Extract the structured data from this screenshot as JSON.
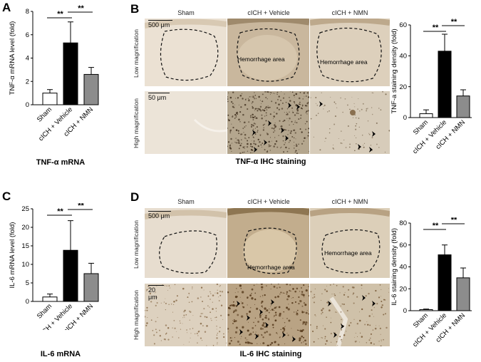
{
  "panels": {
    "a": "A",
    "b": "B",
    "c": "C",
    "d": "D"
  },
  "captions": {
    "tnf_mrna": "TNF-α mRNA",
    "tnf_ihc": "TNF-α IHC staining",
    "il6_mrna": "IL-6 mRNA",
    "il6_ihc": "IL-6 IHC staining"
  },
  "columns": [
    "Sham",
    "cICH + Vehicle",
    "cICH + NMN"
  ],
  "rows": {
    "low": "Low magnification",
    "high": "High magnification"
  },
  "micrographs": {
    "hemorrhage_label": "Hemorrhage area",
    "scale_low": "500 μm",
    "scale_high_b": "50 μm",
    "scale_high_d": "20 μm"
  },
  "significance": "**",
  "colors": {
    "sham": "#ffffff",
    "vehicle": "#000000",
    "nmn": "#8c8c8c",
    "tissue_light": "#ece2d6",
    "tissue_dark": "#b9a48a"
  },
  "chart_data": [
    {
      "id": "A",
      "type": "bar",
      "categories": [
        "Sham",
        "cICH + Vehicle",
        "cICH + NMN"
      ],
      "values": [
        1.0,
        5.3,
        2.6
      ],
      "errors": [
        0.3,
        1.8,
        0.6
      ],
      "ylabel": "TNF-α mRNA level (fold)",
      "ylim": [
        0,
        8
      ],
      "yticks": [
        0,
        2,
        4,
        6,
        8
      ],
      "significance": [
        {
          "from": 0,
          "to": 1,
          "label": "**"
        },
        {
          "from": 1,
          "to": 2,
          "label": "**"
        }
      ]
    },
    {
      "id": "B",
      "type": "bar",
      "categories": [
        "Sham",
        "cICH + Vehicle",
        "cICH + NMN"
      ],
      "values": [
        2.5,
        43,
        14
      ],
      "errors": [
        2.5,
        11,
        4
      ],
      "ylabel": "TNF-a staining density (fold)",
      "ylim": [
        0,
        60
      ],
      "yticks": [
        0,
        20,
        40,
        60
      ],
      "significance": [
        {
          "from": 0,
          "to": 1,
          "label": "**"
        },
        {
          "from": 1,
          "to": 2,
          "label": "**"
        }
      ]
    },
    {
      "id": "C",
      "type": "bar",
      "categories": [
        "Sham",
        "cICH + Vehicle",
        "cICH + NMN"
      ],
      "values": [
        1.2,
        13.8,
        7.5
      ],
      "errors": [
        0.8,
        8.0,
        2.8
      ],
      "ylabel": "IL-6 mRNA level (fold)",
      "ylim": [
        0,
        25
      ],
      "yticks": [
        0,
        5,
        10,
        15,
        20,
        25
      ],
      "significance": [
        {
          "from": 0,
          "to": 1,
          "label": "**"
        },
        {
          "from": 1,
          "to": 2,
          "label": "**"
        }
      ]
    },
    {
      "id": "D",
      "type": "bar",
      "categories": [
        "Sham",
        "cICH + Vehicle",
        "cICH + NMN"
      ],
      "values": [
        1.0,
        51,
        30
      ],
      "errors": [
        0.5,
        9,
        9
      ],
      "ylabel": "IL-6 staining density (fold)",
      "ylim": [
        0,
        80
      ],
      "yticks": [
        0,
        20,
        40,
        60,
        80
      ],
      "significance": [
        {
          "from": 0,
          "to": 1,
          "label": "**"
        },
        {
          "from": 1,
          "to": 2,
          "label": "**"
        }
      ]
    }
  ]
}
